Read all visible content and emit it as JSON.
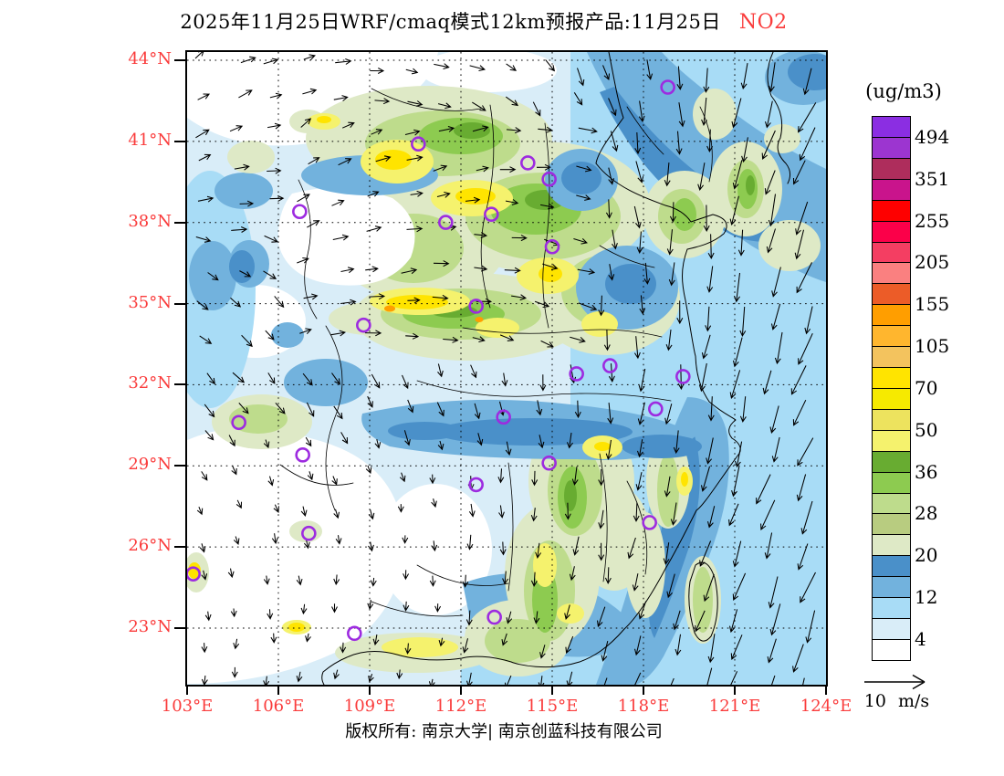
{
  "title": {
    "text": "2025年11月25日WRF/cmaq模式12km预报产品:11月25日",
    "pollutant": "NO2"
  },
  "colorbar": {
    "unit_label": "(ug/m3)",
    "tick_labels": [
      "494",
      "351",
      "255",
      "205",
      "155",
      "105",
      "70",
      "50",
      "36",
      "28",
      "20",
      "12",
      "4"
    ],
    "colors": [
      "#8B2EE2",
      "#9C35D0",
      "#AE2D5C",
      "#C9148C",
      "#FE0000",
      "#FB0049",
      "#F43E62",
      "#FA8080",
      "#EC5C28",
      "#FF9E00",
      "#FFB62E",
      "#F3C35E",
      "#FFE400",
      "#F6EA00",
      "#EDE35E",
      "#F5F26D",
      "#68AC31",
      "#8DCB50",
      "#BEDC8C",
      "#B8CC80",
      "#DEE9C6",
      "#4A90C9",
      "#72B2DD",
      "#A8DCF6",
      "#D9EDF8",
      "#FFFFFF"
    ]
  },
  "x_axis": {
    "ticks": [
      "103°E",
      "106°E",
      "109°E",
      "112°E",
      "115°E",
      "118°E",
      "121°E",
      "124°E"
    ]
  },
  "y_axis": {
    "ticks": [
      "44°N",
      "41°N",
      "38°N",
      "35°N",
      "32°N",
      "29°N",
      "26°N",
      "23°N"
    ]
  },
  "wind_legend": {
    "label": "10 m/s"
  },
  "footer": {
    "text": "版权所有: 南京大学| 南京创蓝科技有限公司"
  },
  "accent_colors": {
    "axis_label_red": "#FA3C3C",
    "station_marker_purple": "#9D2BE0"
  },
  "chart_data": {
    "type": "heatmap",
    "title": "2025年11月25日WRF/cmaq模式12km预报产品:11月25日 NO2",
    "variable": "NO2",
    "unit": "ug/m3",
    "model": "WRF/cmaq",
    "resolution": "12km",
    "forecast_date_shown": "2025年11月25日",
    "x": {
      "label": "longitude",
      "tick_values": [
        103,
        106,
        109,
        112,
        115,
        118,
        121,
        124
      ],
      "range": [
        103,
        124
      ]
    },
    "y": {
      "label": "latitude",
      "tick_values": [
        44,
        41,
        38,
        35,
        32,
        29,
        26,
        23
      ],
      "range": [
        23,
        44
      ]
    },
    "levels_labeled": [
      4,
      12,
      20,
      28,
      36,
      50,
      70,
      105,
      155,
      205,
      255,
      351,
      494
    ],
    "legend_position": "right",
    "grid": "dotted graticule every 3 degrees",
    "wind": {
      "style": "vectors",
      "reference": "10 m/s",
      "pattern": "westerly/northeasterly flow in northwest, strong northerly flow over the eastern sea curving southwest"
    },
    "high_value_regions": "yellow/green NO2 maxima over North China (Shanxi-Hebei-Henan-Shandong), central-south band (Hunan-Jiangxi), southeast coast and Sichuan basin; low values (white) over the far northwest, southwest and far offshore",
    "station_markers": [
      {
        "lon": 118.8,
        "lat": 42.7
      },
      {
        "lon": 110.6,
        "lat": 40.6
      },
      {
        "lon": 114.2,
        "lat": 39.9
      },
      {
        "lon": 114.9,
        "lat": 39.3
      },
      {
        "lon": 106.7,
        "lat": 38.1
      },
      {
        "lon": 113.0,
        "lat": 38.0
      },
      {
        "lon": 111.5,
        "lat": 37.7
      },
      {
        "lon": 115.0,
        "lat": 36.8
      },
      {
        "lon": 112.5,
        "lat": 34.6
      },
      {
        "lon": 108.8,
        "lat": 33.9
      },
      {
        "lon": 116.9,
        "lat": 32.4
      },
      {
        "lon": 115.8,
        "lat": 32.1
      },
      {
        "lon": 119.3,
        "lat": 32.0
      },
      {
        "lon": 118.4,
        "lat": 30.8
      },
      {
        "lon": 113.4,
        "lat": 30.5
      },
      {
        "lon": 104.7,
        "lat": 30.3
      },
      {
        "lon": 106.8,
        "lat": 29.1
      },
      {
        "lon": 114.9,
        "lat": 28.8
      },
      {
        "lon": 112.5,
        "lat": 28.0
      },
      {
        "lon": 118.2,
        "lat": 26.6
      },
      {
        "lon": 107.0,
        "lat": 26.2
      },
      {
        "lon": 113.1,
        "lat": 23.1
      },
      {
        "lon": 103.2,
        "lat": 24.7
      },
      {
        "lon": 108.5,
        "lat": 22.5
      }
    ]
  }
}
